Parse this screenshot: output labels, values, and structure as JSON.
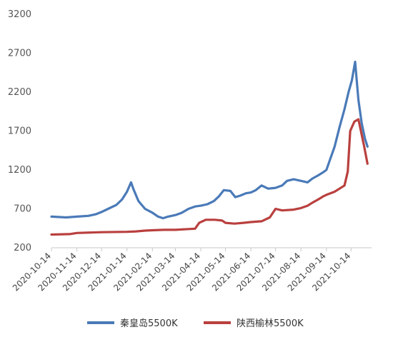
{
  "chart_data": {
    "type": "line",
    "title": "",
    "xlabel": "",
    "ylabel": "",
    "ylim": [
      200,
      3200
    ],
    "yticks": [
      200,
      700,
      1200,
      1700,
      2200,
      2700,
      3200
    ],
    "xlim": [
      "2020-10-14",
      "2021-11-08"
    ],
    "xticks": [
      "2020-10-14",
      "2020-11-14",
      "2020-12-14",
      "2021-01-14",
      "2021-02-14",
      "2021-03-14",
      "2021-04-14",
      "2021-05-14",
      "2021-06-14",
      "2021-07-14",
      "2021-08-14",
      "2021-09-14",
      "2021-10-14"
    ],
    "grid": false,
    "legend_position": "bottom",
    "series": [
      {
        "name": "秦皇岛5500K",
        "color": "#4a7ab8",
        "points": [
          [
            "2020-10-14",
            600
          ],
          [
            "2020-10-22",
            595
          ],
          [
            "2020-11-01",
            590
          ],
          [
            "2020-11-14",
            600
          ],
          [
            "2020-11-28",
            610
          ],
          [
            "2020-12-07",
            630
          ],
          [
            "2020-12-14",
            660
          ],
          [
            "2020-12-22",
            700
          ],
          [
            "2021-01-01",
            750
          ],
          [
            "2021-01-08",
            820
          ],
          [
            "2021-01-14",
            920
          ],
          [
            "2021-01-19",
            1040
          ],
          [
            "2021-01-22",
            950
          ],
          [
            "2021-01-28",
            800
          ],
          [
            "2021-02-05",
            700
          ],
          [
            "2021-02-14",
            650
          ],
          [
            "2021-02-21",
            600
          ],
          [
            "2021-02-27",
            580
          ],
          [
            "2021-03-05",
            600
          ],
          [
            "2021-03-14",
            620
          ],
          [
            "2021-03-22",
            650
          ],
          [
            "2021-03-30",
            700
          ],
          [
            "2021-04-07",
            730
          ],
          [
            "2021-04-14",
            740
          ],
          [
            "2021-04-22",
            760
          ],
          [
            "2021-04-30",
            800
          ],
          [
            "2021-05-06",
            860
          ],
          [
            "2021-05-12",
            940
          ],
          [
            "2021-05-20",
            930
          ],
          [
            "2021-05-26",
            850
          ],
          [
            "2021-06-01",
            870
          ],
          [
            "2021-06-08",
            900
          ],
          [
            "2021-06-14",
            910
          ],
          [
            "2021-06-20",
            940
          ],
          [
            "2021-06-27",
            1000
          ],
          [
            "2021-07-05",
            960
          ],
          [
            "2021-07-14",
            970
          ],
          [
            "2021-07-22",
            1000
          ],
          [
            "2021-07-28",
            1060
          ],
          [
            "2021-08-05",
            1080
          ],
          [
            "2021-08-14",
            1060
          ],
          [
            "2021-08-22",
            1040
          ],
          [
            "2021-08-28",
            1090
          ],
          [
            "2021-09-04",
            1130
          ],
          [
            "2021-09-10",
            1170
          ],
          [
            "2021-09-14",
            1200
          ],
          [
            "2021-09-18",
            1320
          ],
          [
            "2021-09-24",
            1500
          ],
          [
            "2021-09-30",
            1750
          ],
          [
            "2021-10-06",
            1980
          ],
          [
            "2021-10-11",
            2200
          ],
          [
            "2021-10-15",
            2350
          ],
          [
            "2021-10-19",
            2590
          ],
          [
            "2021-10-23",
            2100
          ],
          [
            "2021-10-27",
            1800
          ],
          [
            "2021-10-31",
            1600
          ],
          [
            "2021-11-03",
            1500
          ]
        ]
      },
      {
        "name": "陕西榆林5500K",
        "color": "#b9403e",
        "points": [
          [
            "2020-10-14",
            370
          ],
          [
            "2020-11-05",
            375
          ],
          [
            "2020-11-14",
            390
          ],
          [
            "2020-12-14",
            400
          ],
          [
            "2021-01-14",
            405
          ],
          [
            "2021-01-25",
            410
          ],
          [
            "2021-02-05",
            420
          ],
          [
            "2021-02-14",
            425
          ],
          [
            "2021-02-28",
            430
          ],
          [
            "2021-03-14",
            430
          ],
          [
            "2021-03-30",
            440
          ],
          [
            "2021-04-07",
            445
          ],
          [
            "2021-04-12",
            520
          ],
          [
            "2021-04-20",
            560
          ],
          [
            "2021-05-01",
            560
          ],
          [
            "2021-05-10",
            550
          ],
          [
            "2021-05-14",
            520
          ],
          [
            "2021-05-25",
            510
          ],
          [
            "2021-06-05",
            520
          ],
          [
            "2021-06-14",
            530
          ],
          [
            "2021-06-27",
            540
          ],
          [
            "2021-07-07",
            590
          ],
          [
            "2021-07-14",
            700
          ],
          [
            "2021-07-22",
            680
          ],
          [
            "2021-08-05",
            690
          ],
          [
            "2021-08-14",
            710
          ],
          [
            "2021-08-22",
            740
          ],
          [
            "2021-08-28",
            780
          ],
          [
            "2021-09-04",
            820
          ],
          [
            "2021-09-10",
            860
          ],
          [
            "2021-09-14",
            880
          ],
          [
            "2021-09-24",
            920
          ],
          [
            "2021-09-30",
            960
          ],
          [
            "2021-10-06",
            1000
          ],
          [
            "2021-10-10",
            1180
          ],
          [
            "2021-10-13",
            1700
          ],
          [
            "2021-10-18",
            1820
          ],
          [
            "2021-10-23",
            1850
          ],
          [
            "2021-10-26",
            1700
          ],
          [
            "2021-10-30",
            1500
          ],
          [
            "2021-11-03",
            1280
          ]
        ]
      }
    ]
  }
}
